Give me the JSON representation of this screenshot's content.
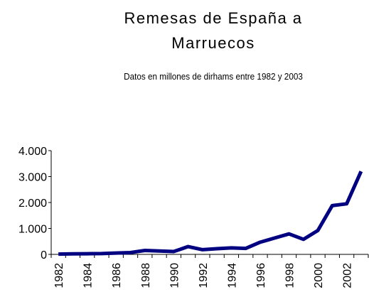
{
  "chart_data": {
    "type": "line",
    "title": "Remesas de España a Marruecos",
    "subtitle": "Datos en millones de dirhams entre 1982 y 2003",
    "categories": [
      "1982",
      null,
      "1984",
      null,
      "1986",
      null,
      "1988",
      null,
      "1990",
      null,
      "1992",
      null,
      "1994",
      null,
      "1996",
      null,
      "1998",
      null,
      "2000",
      null,
      "2002",
      null
    ],
    "series": [
      {
        "name": "Remesas",
        "color": "#000080",
        "values": [
          10,
          20,
          25,
          30,
          50,
          70,
          150,
          130,
          110,
          300,
          180,
          220,
          250,
          230,
          470,
          630,
          790,
          580,
          920,
          1880,
          1950,
          3200
        ]
      }
    ],
    "ylim": [
      0,
      4000
    ],
    "yticks": [
      0,
      {
        "value": 1000,
        "label": "1.000"
      },
      {
        "value": 2000,
        "label": "2.000"
      },
      {
        "value": 3000,
        "label": "3.000"
      },
      {
        "value": 4000,
        "label": "4.000"
      }
    ],
    "grid": false
  }
}
